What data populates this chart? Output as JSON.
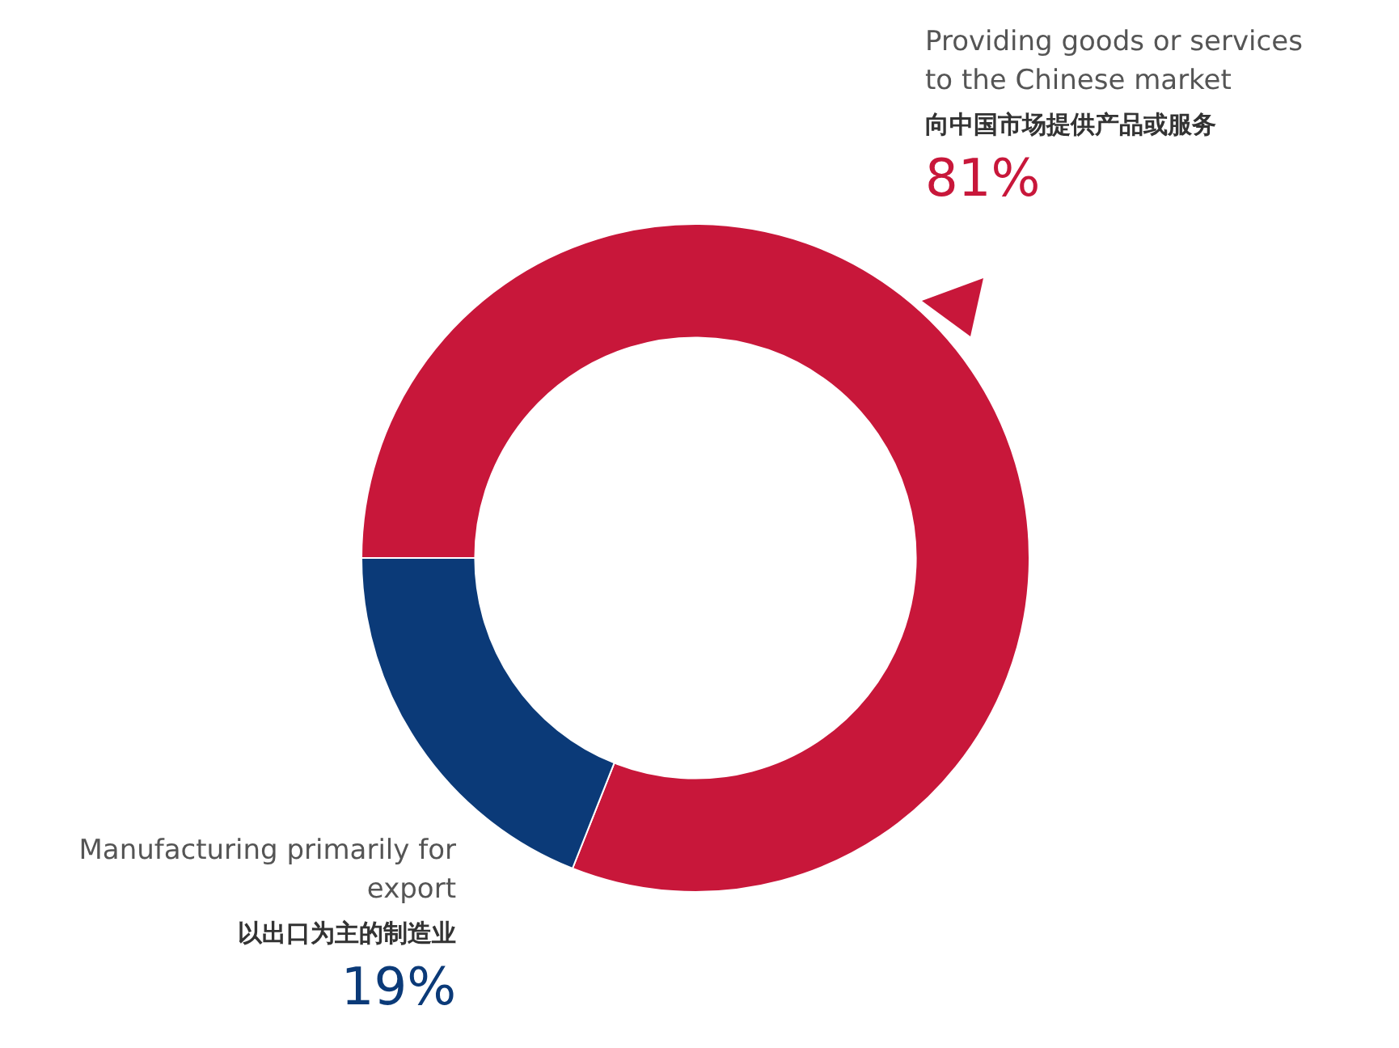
{
  "chart_data": {
    "type": "donut",
    "categories": [
      "Providing goods or services to the Chinese market",
      "Manufacturing primarily for export"
    ],
    "values": [
      81,
      19
    ],
    "colors": [
      "#c8173a",
      "#0b3a78"
    ],
    "value_labels": [
      "81%",
      "19%"
    ],
    "annotations": [
      {
        "text": "向中国市场提供产品或服务",
        "x": "Providing goods or services to the Chinese market"
      },
      {
        "text": "以出口为主的制造业",
        "x": "Manufacturing primarily for export"
      }
    ]
  }
}
